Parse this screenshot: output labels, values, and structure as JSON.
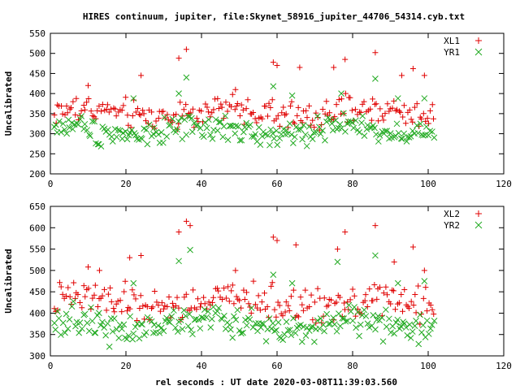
{
  "title": "HIRES continuum, jupiter, file:Skynet_58916_jupiter_44706_54314.cyb.txt",
  "xlabel": "rel seconds : UT date 2020-03-08T11:39:03.560",
  "colors": {
    "series_plus": "#e00000",
    "series_cross": "#22aa22"
  },
  "chart_data": [
    {
      "type": "scatter",
      "ylabel": "Uncalibrated",
      "xlim": [
        0,
        120
      ],
      "ylim": [
        200,
        550
      ],
      "xticks": [
        0,
        20,
        40,
        60,
        80,
        100,
        120
      ],
      "yticks": [
        200,
        250,
        300,
        350,
        400,
        450,
        500,
        550
      ],
      "legend_position": "top-right",
      "series": [
        {
          "name": "XL1",
          "marker": "plus",
          "color": "#e00000",
          "base": 352,
          "amp": 40,
          "spikes": [
            [
              10,
              420
            ],
            [
              24,
              445
            ],
            [
              34,
              488
            ],
            [
              36,
              510
            ],
            [
              49,
              410
            ],
            [
              59,
              478
            ],
            [
              60,
              470
            ],
            [
              66,
              465
            ],
            [
              75,
              465
            ],
            [
              78,
              485
            ],
            [
              86,
              502
            ],
            [
              93,
              445
            ],
            [
              96,
              462
            ],
            [
              99,
              445
            ]
          ]
        },
        {
          "name": "YR1",
          "marker": "cross",
          "color": "#22aa22",
          "base": 308,
          "amp": 35,
          "spikes": [
            [
              22,
              388
            ],
            [
              34,
              400
            ],
            [
              36,
              440
            ],
            [
              59,
              418
            ],
            [
              64,
              395
            ],
            [
              77,
              400
            ],
            [
              86,
              437
            ],
            [
              92,
              388
            ],
            [
              99,
              388
            ]
          ]
        }
      ]
    },
    {
      "type": "scatter",
      "ylabel": "Uncalibrated",
      "xlim": [
        0,
        120
      ],
      "ylim": [
        300,
        650
      ],
      "xticks": [
        0,
        20,
        40,
        60,
        80,
        100,
        120
      ],
      "yticks": [
        300,
        350,
        400,
        450,
        500,
        550,
        600,
        650
      ],
      "legend_position": "top-right",
      "series": [
        {
          "name": "XL2",
          "marker": "plus",
          "color": "#e00000",
          "base": 425,
          "amp": 45,
          "spikes": [
            [
              10,
              508
            ],
            [
              13,
              500
            ],
            [
              21,
              530
            ],
            [
              24,
              535
            ],
            [
              34,
              590
            ],
            [
              36,
              615
            ],
            [
              37,
              605
            ],
            [
              49,
              500
            ],
            [
              59,
              578
            ],
            [
              60,
              570
            ],
            [
              65,
              560
            ],
            [
              76,
              550
            ],
            [
              78,
              590
            ],
            [
              86,
              605
            ],
            [
              91,
              520
            ],
            [
              96,
              555
            ],
            [
              99,
              500
            ]
          ]
        },
        {
          "name": "YR2",
          "marker": "cross",
          "color": "#22aa22",
          "base": 375,
          "amp": 40,
          "spikes": [
            [
              22,
              470
            ],
            [
              34,
              522
            ],
            [
              37,
              548
            ],
            [
              59,
              490
            ],
            [
              64,
              470
            ],
            [
              76,
              520
            ],
            [
              86,
              535
            ],
            [
              92,
              470
            ],
            [
              99,
              475
            ]
          ]
        }
      ]
    }
  ]
}
